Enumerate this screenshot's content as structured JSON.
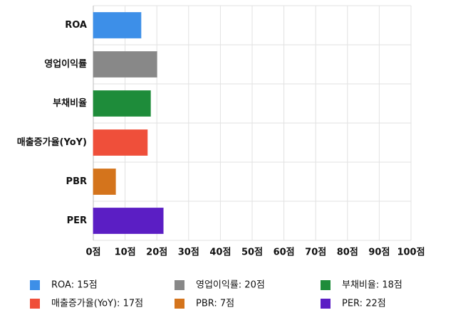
{
  "chart_data": {
    "type": "hbar",
    "categories": [
      "ROA",
      "영업이익률",
      "부채비율",
      "매출증가율(YoY)",
      "PBR",
      "PER"
    ],
    "values": [
      15,
      20,
      18,
      17,
      7,
      22
    ],
    "colors": [
      "#3d8fe8",
      "#888888",
      "#1e8c3a",
      "#ef4f3a",
      "#d4741c",
      "#5b1ec4"
    ],
    "xlim": [
      0,
      100
    ],
    "xticks": [
      {
        "value": 0,
        "label": "0점"
      },
      {
        "value": 10,
        "label": "10점"
      },
      {
        "value": 20,
        "label": "20점"
      },
      {
        "value": 30,
        "label": "30점"
      },
      {
        "value": 40,
        "label": "40점"
      },
      {
        "value": 50,
        "label": "50점"
      },
      {
        "value": 60,
        "label": "60점"
      },
      {
        "value": 70,
        "label": "70점"
      },
      {
        "value": 80,
        "label": "80점"
      },
      {
        "value": 90,
        "label": "90점"
      },
      {
        "value": 100,
        "label": "100점"
      }
    ],
    "grid": true,
    "legend_labels": [
      "ROA: 15점",
      "영업이익률: 20점",
      "부채비율: 18점",
      "매출증가율(YoY): 17점",
      "PBR: 7점",
      "PER: 22점"
    ]
  }
}
